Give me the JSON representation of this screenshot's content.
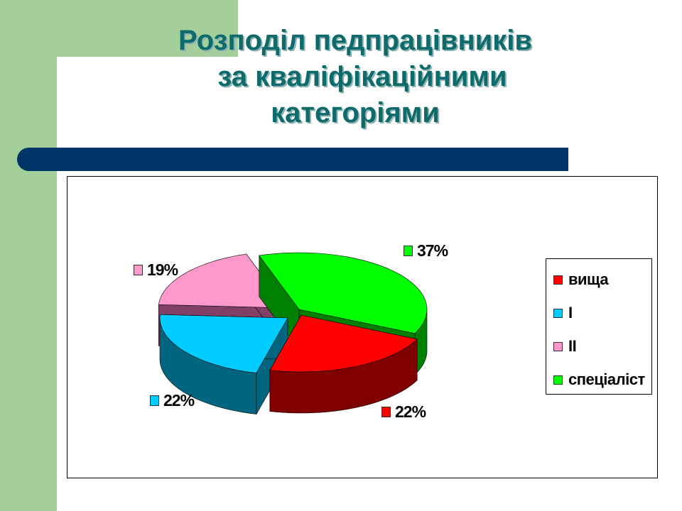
{
  "slide": {
    "title_lines": [
      "Розподіл педпрацівників",
      "за кваліфікаційними",
      "категоріями"
    ]
  },
  "colors": {
    "band": "#a3cf9b",
    "divider": "#003366",
    "title": "#0e6b6b"
  },
  "chart_data": {
    "type": "pie",
    "title": "",
    "categories": [
      "вища",
      "I",
      "II",
      "спеціаліст"
    ],
    "values": [
      22,
      22,
      19,
      37
    ],
    "labels": [
      "22%",
      "22%",
      "19%",
      "37%"
    ],
    "colors_top": [
      "#ff0000",
      "#00ccff",
      "#ff99cc",
      "#00ff00"
    ],
    "colors_side": [
      "#800000",
      "#006680",
      "#804066",
      "#008000"
    ],
    "style": "3d-exploded",
    "legend": {
      "position": "right",
      "entries": [
        "вища",
        "I",
        "II",
        "спеціаліст"
      ]
    }
  }
}
